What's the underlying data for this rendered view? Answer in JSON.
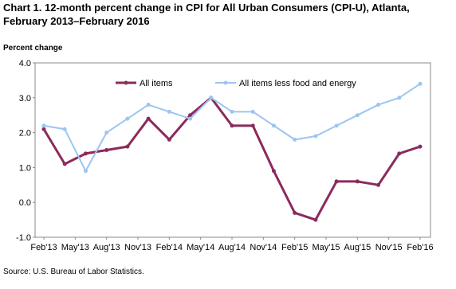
{
  "chart_data": {
    "type": "line",
    "title": [
      "Chart 1. 12-month  percent change in CPI for All Urban Consumers  (CPI-U),  Atlanta,",
      "February 2013–February  2016"
    ],
    "y_label": "Percent change",
    "source": "Source: U.S. Bureau of Labor Statistics.",
    "x": [
      "2013-02",
      "2013-04",
      "2013-06",
      "2013-08",
      "2013-10",
      "2013-12",
      "2014-02",
      "2014-04",
      "2014-06",
      "2014-08",
      "2014-10",
      "2014-12",
      "2015-02",
      "2015-04",
      "2015-06",
      "2015-08",
      "2015-10",
      "2015-12",
      "2016-02"
    ],
    "xlim": [
      "2013-02",
      "2016-02"
    ],
    "xticks": [
      {
        "value": "2013-02",
        "label": "Feb'13"
      },
      {
        "value": "2013-05",
        "label": "May'13"
      },
      {
        "value": "2013-08",
        "label": "Aug'13"
      },
      {
        "value": "2013-11",
        "label": "Nov'13"
      },
      {
        "value": "2014-02",
        "label": "Feb'14"
      },
      {
        "value": "2014-05",
        "label": "May'14"
      },
      {
        "value": "2014-08",
        "label": "Aug'14"
      },
      {
        "value": "2014-11",
        "label": "Nov'14"
      },
      {
        "value": "2015-02",
        "label": "Feb'15"
      },
      {
        "value": "2015-05",
        "label": "May'15"
      },
      {
        "value": "2015-08",
        "label": "Aug'15"
      },
      {
        "value": "2015-11",
        "label": "Nov'15"
      },
      {
        "value": "2016-02",
        "label": "Feb'16"
      }
    ],
    "ylim": [
      -1,
      4
    ],
    "yticks": [
      {
        "value": -1,
        "label": "-1.0"
      },
      {
        "value": 0,
        "label": "0.0"
      },
      {
        "value": 1,
        "label": "1.0"
      },
      {
        "value": 2,
        "label": "2.0"
      },
      {
        "value": 3,
        "label": "3.0"
      },
      {
        "value": 4,
        "label": "4.0"
      }
    ],
    "grid": false,
    "series": [
      {
        "name": "All items",
        "color": "#8b2a5c",
        "values": [
          2.1,
          1.1,
          1.4,
          1.5,
          1.6,
          2.4,
          1.8,
          2.5,
          3.0,
          2.2,
          2.2,
          0.9,
          -0.3,
          -0.5,
          0.6,
          0.6,
          0.5,
          1.4,
          1.6
        ]
      },
      {
        "name": "All items less food and energy",
        "color": "#9cc5f2",
        "values": [
          2.2,
          2.1,
          0.9,
          2.0,
          2.4,
          2.8,
          2.6,
          2.4,
          3.0,
          2.6,
          2.6,
          2.2,
          1.8,
          1.9,
          2.2,
          2.5,
          2.8,
          3.0,
          3.4
        ]
      }
    ]
  }
}
